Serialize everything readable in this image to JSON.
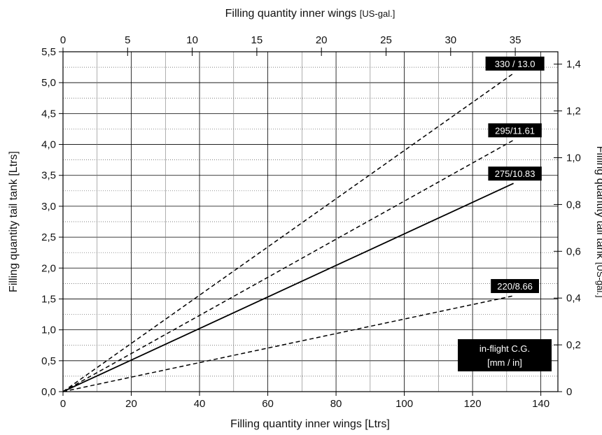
{
  "chart_data": {
    "type": "line",
    "title": "",
    "xlabel": "Filling quantity inner wings [Ltrs]",
    "ylabel": "Filling quantity tail tank [Ltrs]",
    "x2label_main": "Filling quantity inner wings ",
    "x2label_unit": "[US-gal.]",
    "y2label_main": "Filling quantity tail tank ",
    "y2label_unit": "[US-gal.]",
    "xlim": [
      0,
      145
    ],
    "ylim": [
      0,
      5.5
    ],
    "x2lim": [
      0,
      38.3
    ],
    "y2lim": [
      0,
      1.453
    ],
    "x_ticks": [
      "0",
      "20",
      "40",
      "60",
      "80",
      "100",
      "120",
      "140"
    ],
    "y_ticks": [
      "0,0",
      "0,5",
      "1,0",
      "1,5",
      "2,0",
      "2,5",
      "3,0",
      "3,5",
      "4,0",
      "4,5",
      "5,0",
      "5,5"
    ],
    "x2_ticks": [
      "0",
      "5",
      "10",
      "15",
      "20",
      "25",
      "30",
      "35"
    ],
    "y2_ticks": [
      "0",
      "0,2",
      "0,4",
      "0,6",
      "0,8",
      "1,0",
      "1,2",
      "1,4"
    ],
    "grid": true,
    "series": [
      {
        "name": "330 / 13.0",
        "style": "dashed",
        "x": [
          0,
          132
        ],
        "y": [
          0,
          5.15
        ]
      },
      {
        "name": "295/11.61",
        "style": "dashed",
        "x": [
          0,
          132
        ],
        "y": [
          0,
          4.07
        ]
      },
      {
        "name": "275/10.83",
        "style": "solid",
        "x": [
          0,
          132
        ],
        "y": [
          0,
          3.37
        ]
      },
      {
        "name": "220/8.66",
        "style": "dashed",
        "x": [
          0,
          132
        ],
        "y": [
          0,
          1.55
        ]
      }
    ],
    "legend_box": {
      "line1": "in-flight C.G.",
      "line2": "[mm / in]"
    }
  }
}
